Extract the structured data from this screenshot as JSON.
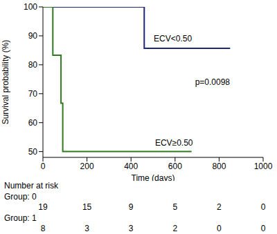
{
  "chart_data": {
    "type": "line",
    "x_label": "Time (days)",
    "y_label": "Survival probability (%)",
    "xlim": [
      0,
      1000
    ],
    "xticks": [
      0,
      200,
      400,
      600,
      800,
      1000
    ],
    "ylim": [
      48,
      100
    ],
    "yticks": [
      50,
      60,
      70,
      80,
      90,
      100
    ],
    "line_style": "step",
    "series": [
      {
        "name": "ECV<0.50",
        "color": "#1f2677",
        "x": [
          0,
          460,
          850
        ],
        "values": [
          100,
          85.7,
          85.7
        ],
        "label_at": [
          590,
          89
        ]
      },
      {
        "name": "ECV≥0.50",
        "color": "#2f7a1f",
        "x": [
          0,
          45,
          82,
          90,
          675
        ],
        "values": [
          100,
          83.3,
          66.7,
          50,
          50
        ],
        "label_at": [
          595,
          53
        ]
      }
    ],
    "annotations": [
      {
        "text": "p=0.0098",
        "x": 770,
        "y": 74
      }
    ],
    "risk_table": {
      "title": "Number at risk",
      "times": [
        0,
        200,
        400,
        600,
        800,
        1000
      ],
      "groups": [
        {
          "name": "Group: 0",
          "values": [
            19,
            15,
            9,
            5,
            2,
            0
          ]
        },
        {
          "name": "Group: 1",
          "values": [
            8,
            3,
            3,
            2,
            0,
            0
          ]
        }
      ]
    }
  }
}
